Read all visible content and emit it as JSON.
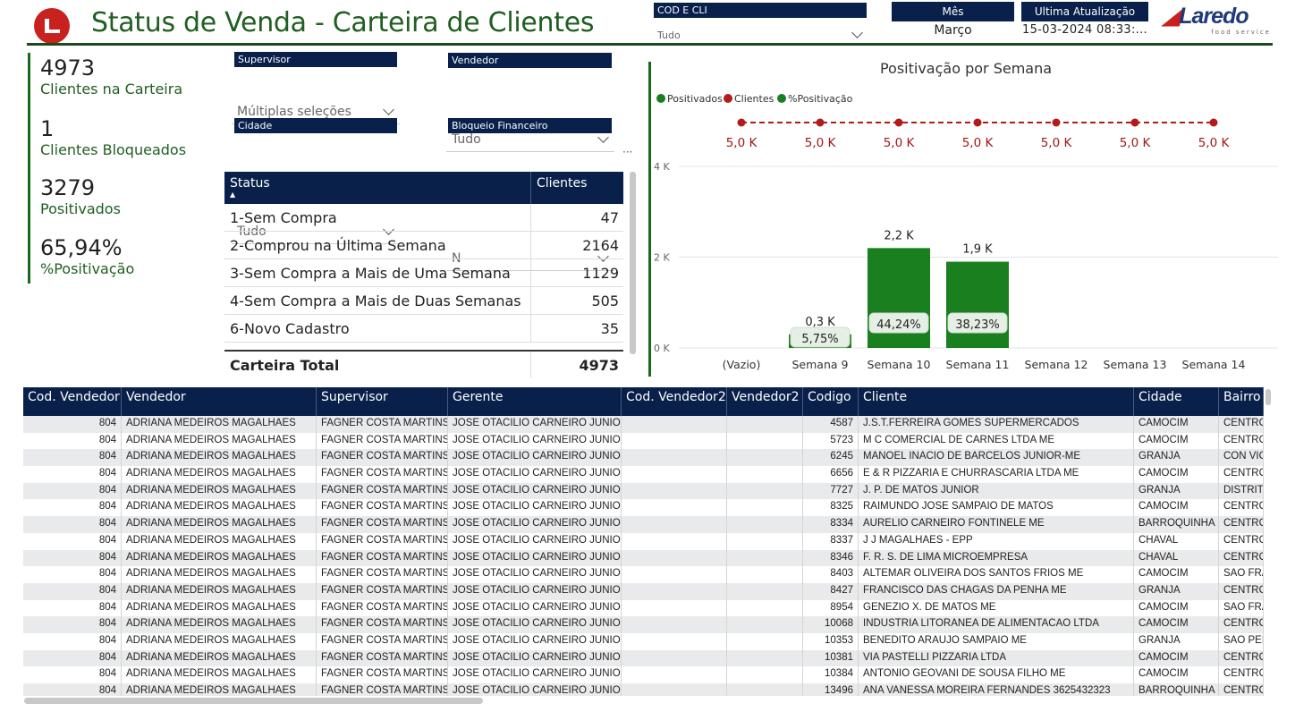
{
  "header": {
    "title": "Status de Venda - Carteira de Clientes",
    "brand": "Laredo",
    "brand_sub": "food service",
    "cod_cli_label": "COD E CLI",
    "cod_cli_value": "Tudo",
    "mes_label": "Mês",
    "mes_value": "Março",
    "update_label": "Ultima Atualização",
    "update_value": "15-03-2024 08:33:..."
  },
  "kpis": [
    {
      "value": "4973",
      "label": "Clientes na Carteira"
    },
    {
      "value": "1",
      "label": "Clientes Bloqueados"
    },
    {
      "value": "3279",
      "label": "Positivados"
    },
    {
      "value": "65,94%",
      "label": "%Positivação"
    }
  ],
  "filters": {
    "supervisor": {
      "label": "Supervisor",
      "value": "Múltiplas seleções"
    },
    "vendedor": {
      "label": "Vendedor",
      "value": "Tudo"
    },
    "cidade": {
      "label": "Cidade",
      "value": "Tudo"
    },
    "bloqueio": {
      "label": "Bloqueio Financeiro",
      "value": "N"
    },
    "more": "···"
  },
  "status_table": {
    "col1": "Status",
    "col2": "Clientes",
    "rows": [
      {
        "status": "1-Sem Compra",
        "clientes": "47"
      },
      {
        "status": "2-Comprou na Última Semana",
        "clientes": "2164"
      },
      {
        "status": "3-Sem Compra a Mais de Uma Semana",
        "clientes": "1129"
      },
      {
        "status": "4-Sem Compra a Mais de Duas Semanas",
        "clientes": "505"
      },
      {
        "status": "6-Novo Cadastro",
        "clientes": "35"
      }
    ],
    "total_label": "Carteira Total",
    "total_value": "4973"
  },
  "colors": {
    "navy": "#08204a",
    "green": "#1a7f1e",
    "red": "#b31b1b",
    "title_green": "#1f5f21"
  },
  "chart_data": {
    "type": "bar",
    "title": "Positivação por Semana",
    "legend": [
      "Positivados",
      "Clientes",
      "%Positivação"
    ],
    "legend_colors": [
      "#1a7f1e",
      "#b31b1b",
      "#1a7f1e"
    ],
    "categories": [
      "(Vazio)",
      "Semana 9",
      "Semana 10",
      "Semana 11",
      "Semana 12",
      "Semana 13",
      "Semana 14"
    ],
    "yticks": [
      "0 K",
      "2 K",
      "4 K"
    ],
    "ylim": [
      0,
      4000
    ],
    "series": [
      {
        "name": "Positivados",
        "values": [
          null,
          300,
          2200,
          1900,
          null,
          null,
          null
        ],
        "labels": [
          "",
          "0,3 K",
          "2,2 K",
          "1,9 K",
          "",
          "",
          ""
        ]
      },
      {
        "name": "%Positivação",
        "values": [
          null,
          5.75,
          44.24,
          38.23,
          null,
          null,
          null
        ],
        "labels": [
          "",
          "5,75%",
          "44,24%",
          "38,23%",
          "",
          "",
          ""
        ]
      },
      {
        "name": "Clientes",
        "values": [
          5000,
          5000,
          5000,
          5000,
          5000,
          5000,
          5000
        ],
        "labels": [
          "5,0 K",
          "5,0 K",
          "5,0 K",
          "5,0 K",
          "5,0 K",
          "5,0 K",
          "5,0 K"
        ]
      }
    ]
  },
  "detail_table": {
    "columns": [
      "Cod. Vendedor",
      "Vendedor",
      "Supervisor",
      "Gerente",
      "Cod. Vendedor2",
      "Vendedor2",
      "Codigo",
      "Cliente",
      "Cidade",
      "Bairro"
    ],
    "rows": [
      [
        "804",
        "ADRIANA MEDEIROS MAGALHAES",
        "FAGNER COSTA MARTINS",
        "JOSE OTACILIO CARNEIRO JUNIOR",
        "",
        "",
        "4587",
        "J.S.T.FERREIRA GOMES SUPERMERCADOS",
        "CAMOCIM",
        "CENTRO"
      ],
      [
        "804",
        "ADRIANA MEDEIROS MAGALHAES",
        "FAGNER COSTA MARTINS",
        "JOSE OTACILIO CARNEIRO JUNIOR",
        "",
        "",
        "5723",
        "M C COMERCIAL DE CARNES LTDA ME",
        "CAMOCIM",
        "CENTRO"
      ],
      [
        "804",
        "ADRIANA MEDEIROS MAGALHAES",
        "FAGNER COSTA MARTINS",
        "JOSE OTACILIO CARNEIRO JUNIOR",
        "",
        "",
        "6245",
        "MANOEL INACIO DE BARCELOS JUNIOR-ME",
        "GRANJA",
        "CON VIC"
      ],
      [
        "804",
        "ADRIANA MEDEIROS MAGALHAES",
        "FAGNER COSTA MARTINS",
        "JOSE OTACILIO CARNEIRO JUNIOR",
        "",
        "",
        "6656",
        "E & R PIZZARIA E CHURRASCARIA LTDA ME",
        "CAMOCIM",
        "CENTRO"
      ],
      [
        "804",
        "ADRIANA MEDEIROS MAGALHAES",
        "FAGNER COSTA MARTINS",
        "JOSE OTACILIO CARNEIRO JUNIOR",
        "",
        "",
        "7727",
        "J. P. DE MATOS JUNIOR",
        "GRANJA",
        "DISTRITO"
      ],
      [
        "804",
        "ADRIANA MEDEIROS MAGALHAES",
        "FAGNER COSTA MARTINS",
        "JOSE OTACILIO CARNEIRO JUNIOR",
        "",
        "",
        "8325",
        "RAIMUNDO JOSE SAMPAIO DE MATOS",
        "CAMOCIM",
        "CENTRO"
      ],
      [
        "804",
        "ADRIANA MEDEIROS MAGALHAES",
        "FAGNER COSTA MARTINS",
        "JOSE OTACILIO CARNEIRO JUNIOR",
        "",
        "",
        "8334",
        "AURELIO CARNEIRO FONTINELE ME",
        "BARROQUINHA",
        "CENTRO"
      ],
      [
        "804",
        "ADRIANA MEDEIROS MAGALHAES",
        "FAGNER COSTA MARTINS",
        "JOSE OTACILIO CARNEIRO JUNIOR",
        "",
        "",
        "8337",
        "J J MAGALHAES - EPP",
        "CHAVAL",
        "CENTRO"
      ],
      [
        "804",
        "ADRIANA MEDEIROS MAGALHAES",
        "FAGNER COSTA MARTINS",
        "JOSE OTACILIO CARNEIRO JUNIOR",
        "",
        "",
        "8346",
        "F. R. S. DE LIMA MICROEMPRESA",
        "CHAVAL",
        "CENTRO"
      ],
      [
        "804",
        "ADRIANA MEDEIROS MAGALHAES",
        "FAGNER COSTA MARTINS",
        "JOSE OTACILIO CARNEIRO JUNIOR",
        "",
        "",
        "8403",
        "ALTEMAR OLIVEIRA DOS SANTOS FRIOS ME",
        "CAMOCIM",
        "SAO FRA"
      ],
      [
        "804",
        "ADRIANA MEDEIROS MAGALHAES",
        "FAGNER COSTA MARTINS",
        "JOSE OTACILIO CARNEIRO JUNIOR",
        "",
        "",
        "8427",
        "FRANCISCO DAS CHAGAS DA PENHA ME",
        "GRANJA",
        "CENTRO"
      ],
      [
        "804",
        "ADRIANA MEDEIROS MAGALHAES",
        "FAGNER COSTA MARTINS",
        "JOSE OTACILIO CARNEIRO JUNIOR",
        "",
        "",
        "8954",
        "GENEZIO X. DE MATOS ME",
        "CAMOCIM",
        "SAO FRA"
      ],
      [
        "804",
        "ADRIANA MEDEIROS MAGALHAES",
        "FAGNER COSTA MARTINS",
        "JOSE OTACILIO CARNEIRO JUNIOR",
        "",
        "",
        "10068",
        "INDUSTRIA LITORANEA DE ALIMENTACAO LTDA",
        "CAMOCIM",
        "CENTRO"
      ],
      [
        "804",
        "ADRIANA MEDEIROS MAGALHAES",
        "FAGNER COSTA MARTINS",
        "JOSE OTACILIO CARNEIRO JUNIOR",
        "",
        "",
        "10353",
        "BENEDITO ARAUJO SAMPAIO ME",
        "GRANJA",
        "SAO PED"
      ],
      [
        "804",
        "ADRIANA MEDEIROS MAGALHAES",
        "FAGNER COSTA MARTINS",
        "JOSE OTACILIO CARNEIRO JUNIOR",
        "",
        "",
        "10381",
        "VIA PASTELLI PIZZARIA LTDA",
        "CAMOCIM",
        "CENTRO"
      ],
      [
        "804",
        "ADRIANA MEDEIROS MAGALHAES",
        "FAGNER COSTA MARTINS",
        "JOSE OTACILIO CARNEIRO JUNIOR",
        "",
        "",
        "10384",
        "ANTONIO GEOVANI DE SOUSA FILHO ME",
        "CAMOCIM",
        "CENTRO"
      ],
      [
        "804",
        "ADRIANA MEDEIROS MAGALHAES",
        "FAGNER COSTA MARTINS",
        "JOSE OTACILIO CARNEIRO JUNIOR",
        "",
        "",
        "13496",
        "ANA VANESSA MOREIRA FERNANDES 3625432323",
        "BARROQUINHA",
        "CENTRO"
      ]
    ]
  }
}
